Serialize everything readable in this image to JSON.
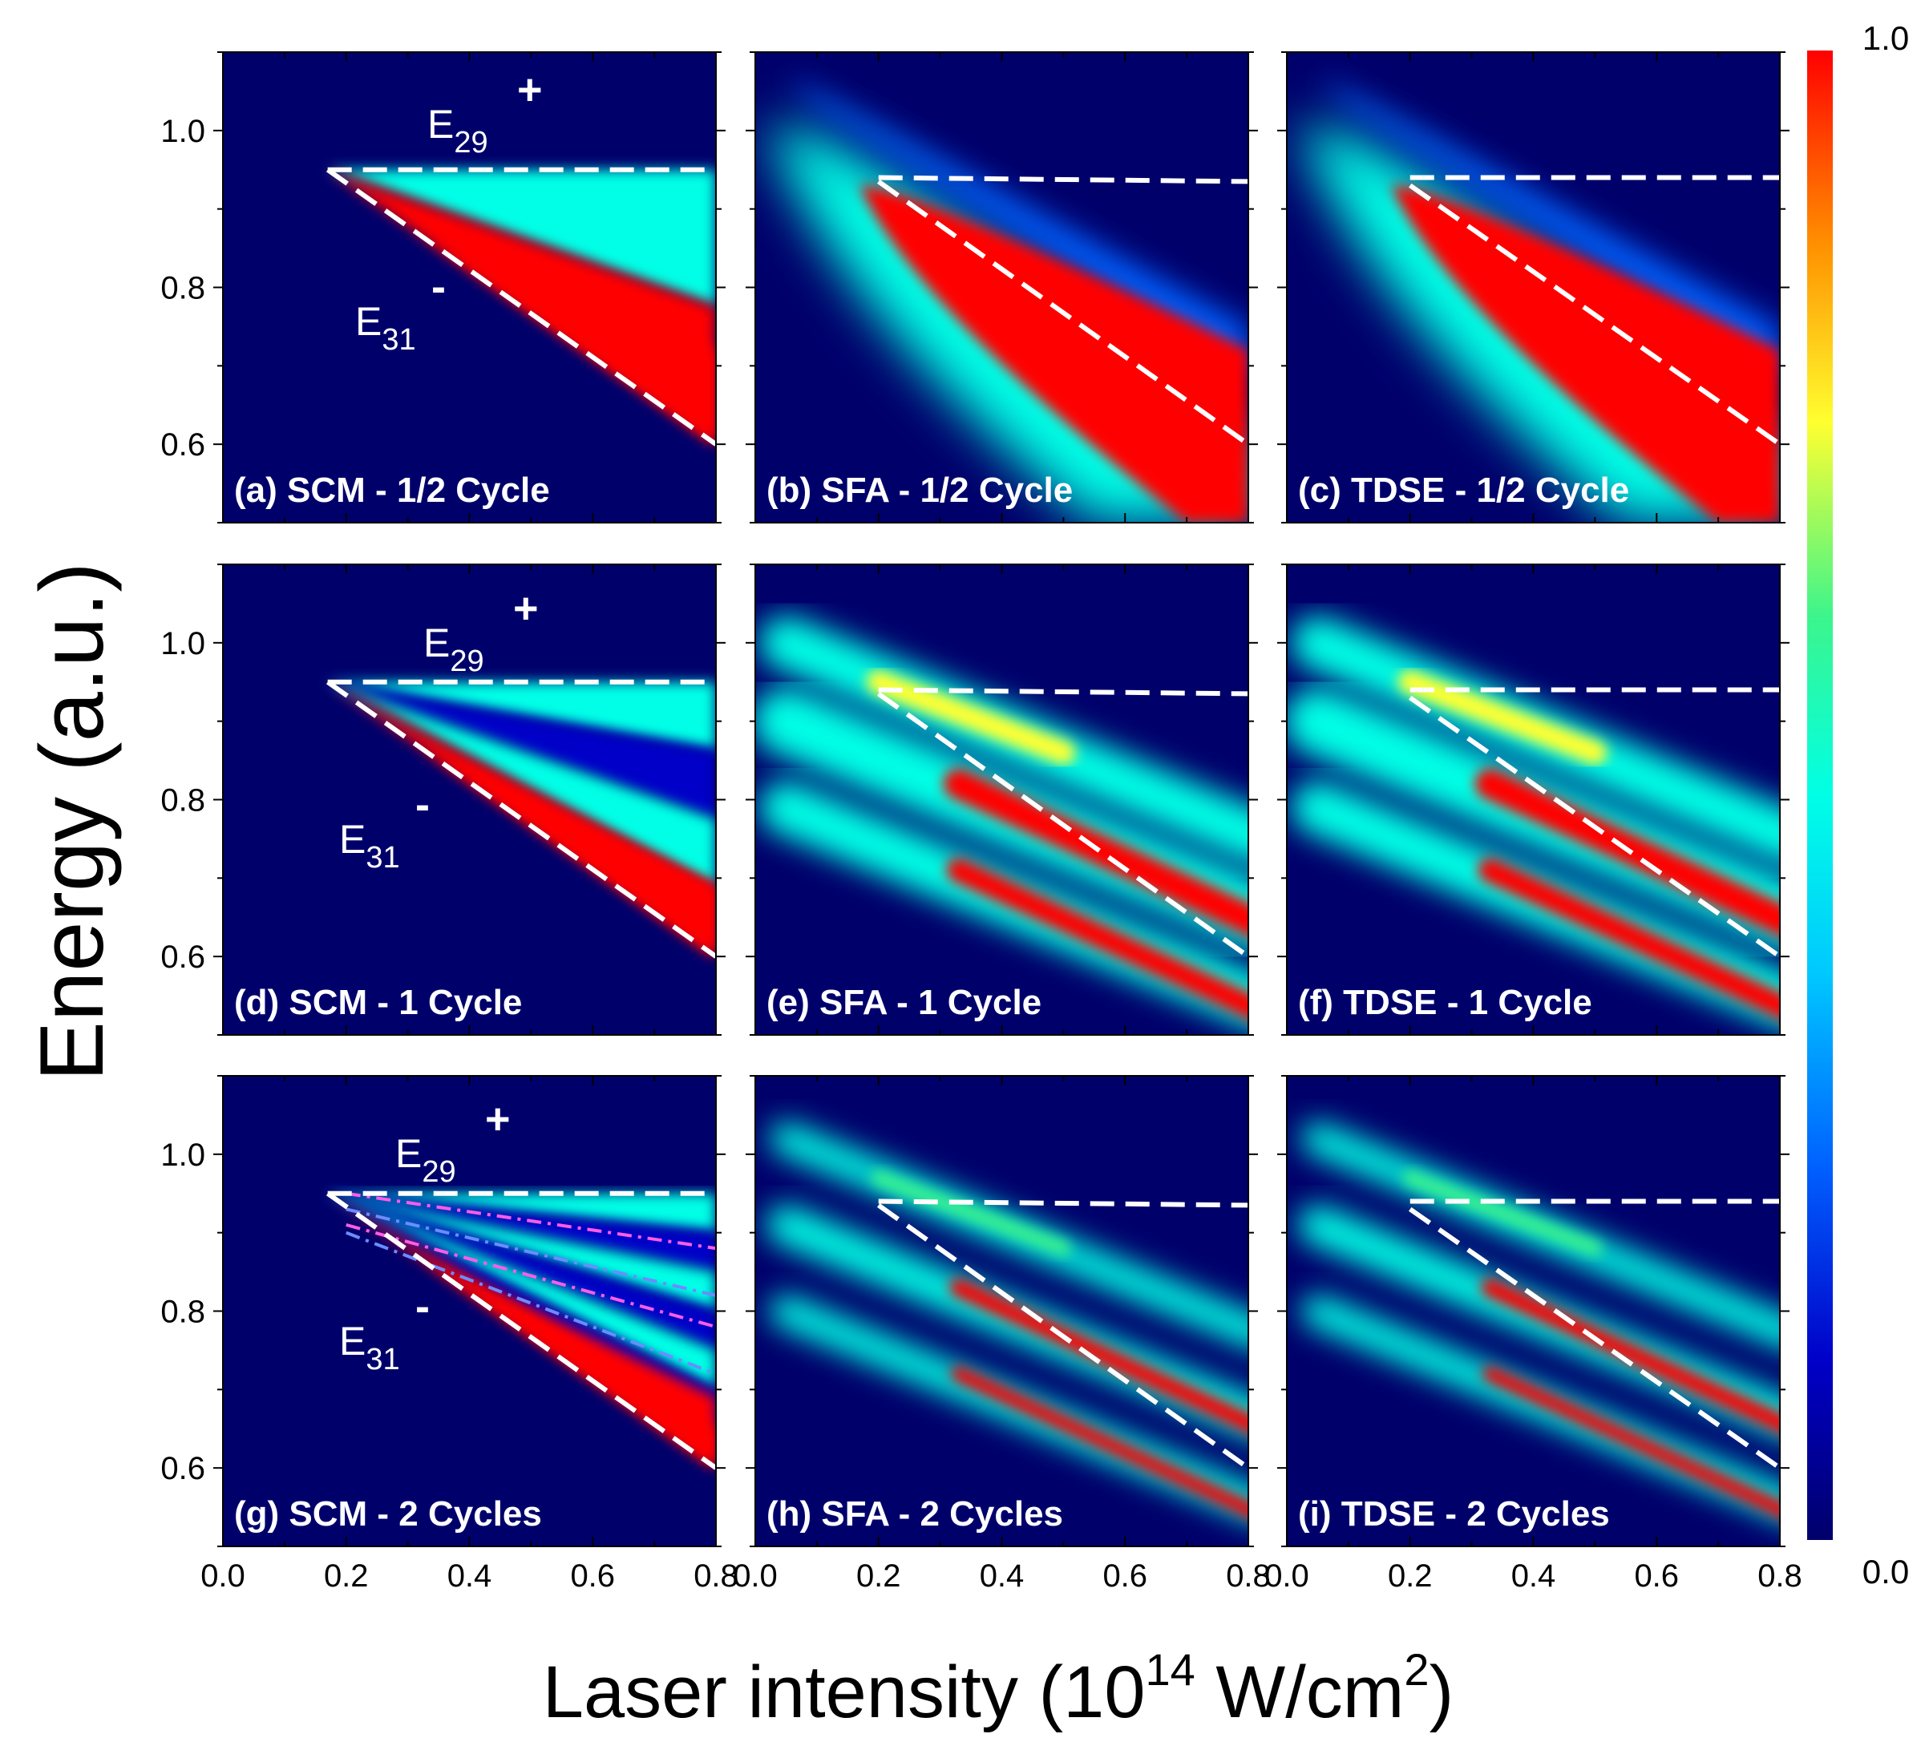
{
  "chart_data": {
    "type": "heatmap",
    "xlabel_main": "Laser intensity (10",
    "xlabel_exp": "14",
    "xlabel_tail": " W/cm",
    "xlabel_exp2": "2",
    "xlabel_close": ")",
    "ylabel": "Energy (a.u.)",
    "xlim": [
      0.0,
      0.8
    ],
    "ylim": [
      0.5,
      1.1
    ],
    "x_ticks": [
      "0.0",
      "0.2",
      "0.4",
      "0.6",
      "0.8"
    ],
    "y_ticks": [
      "0.6",
      "0.8",
      "1.0"
    ],
    "colorbar": {
      "min_label": "0.0",
      "max_label": "1.0",
      "range": [
        0.0,
        1.0
      ]
    },
    "annotations": {
      "plus_label": "E",
      "plus_sub": "29",
      "plus_sign": "+",
      "minus_label": "E",
      "minus_sub": "31",
      "minus_sign": "-"
    },
    "panels": [
      {
        "label": "(a) SCM - 1/2 Cycle",
        "method": "SCM",
        "cycles": 0.5
      },
      {
        "label": "(b) SFA - 1/2 Cycle",
        "method": "SFA",
        "cycles": 0.5
      },
      {
        "label": "(c) TDSE - 1/2 Cycle",
        "method": "TDSE",
        "cycles": 0.5
      },
      {
        "label": "(d) SCM - 1 Cycle",
        "method": "SCM",
        "cycles": 1
      },
      {
        "label": "(e) SFA - 1 Cycle",
        "method": "SFA",
        "cycles": 1
      },
      {
        "label": "(f) TDSE - 1 Cycle",
        "method": "TDSE",
        "cycles": 1
      },
      {
        "label": "(g) SCM - 2 Cycles",
        "method": "SCM",
        "cycles": 2
      },
      {
        "label": "(h) SFA - 2 Cycles",
        "method": "SFA",
        "cycles": 2
      },
      {
        "label": "(i) TDSE - 2 Cycles",
        "method": "TDSE",
        "cycles": 2
      }
    ],
    "dashed_lines": {
      "SCM": {
        "upper": [
          [
            0.17,
            0.95
          ],
          [
            0.8,
            0.95
          ]
        ],
        "lower": [
          [
            0.17,
            0.95
          ],
          [
            0.8,
            0.6
          ]
        ]
      },
      "SFA": {
        "upper": [
          [
            0.2,
            0.94
          ],
          [
            0.8,
            0.935
          ]
        ],
        "lower": [
          [
            0.2,
            0.935
          ],
          [
            0.8,
            0.6
          ]
        ]
      },
      "TDSE": {
        "upper": [
          [
            0.2,
            0.94
          ],
          [
            0.8,
            0.94
          ]
        ],
        "lower": [
          [
            0.2,
            0.93
          ],
          [
            0.8,
            0.6
          ]
        ]
      }
    },
    "colors": {
      "background": "#00006b",
      "colormap": [
        "#00006b",
        "#0000c8",
        "#0060ff",
        "#00c8ff",
        "#00ffe6",
        "#3cf58c",
        "#ffff30",
        "#ff9000",
        "#ff0000"
      ]
    }
  }
}
